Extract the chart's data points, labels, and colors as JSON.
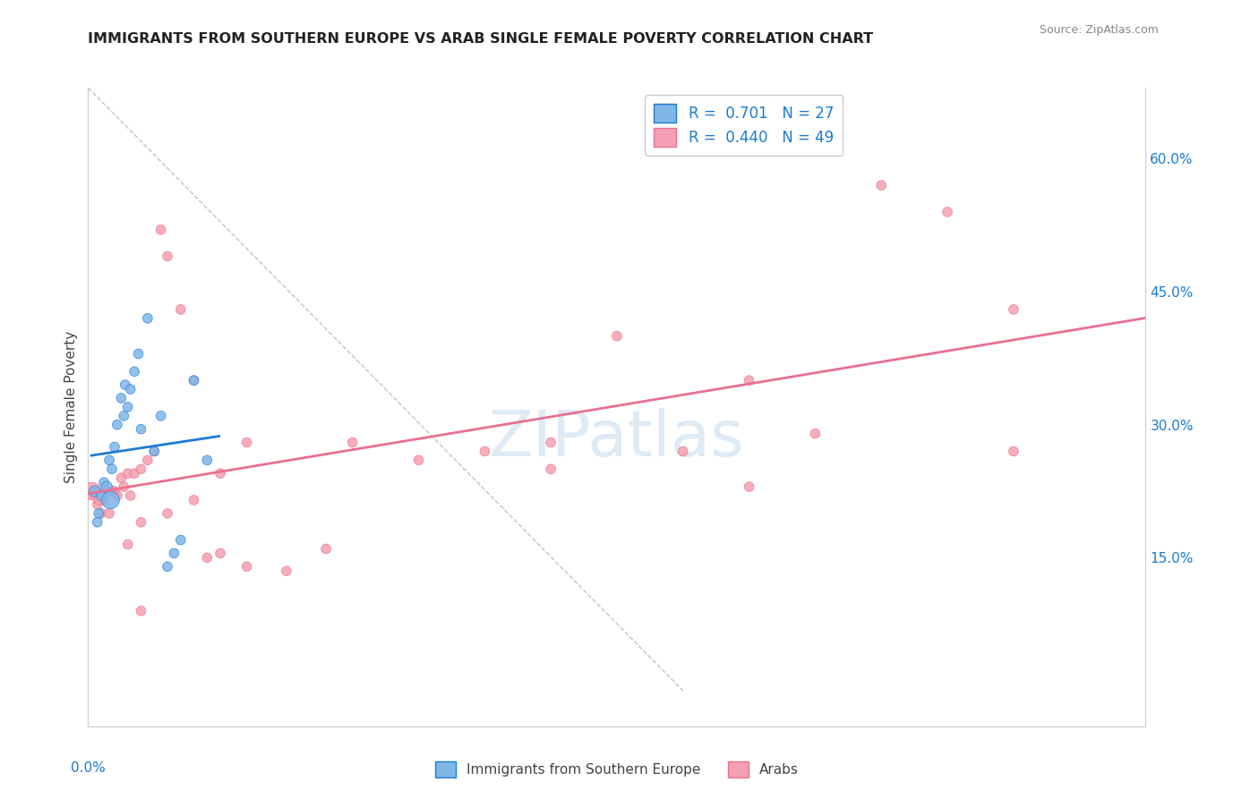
{
  "title": "IMMIGRANTS FROM SOUTHERN EUROPE VS ARAB SINGLE FEMALE POVERTY CORRELATION CHART",
  "source_text": "Source: ZipAtlas.com",
  "ylabel": "Single Female Poverty",
  "watermark": "ZIPatlas",
  "legend_blue_R": "0.701",
  "legend_blue_N": "27",
  "legend_pink_R": "0.440",
  "legend_pink_N": "49",
  "legend_label_blue": "Immigrants from Southern Europe",
  "legend_label_pink": "Arabs",
  "right_yticks": [
    0.0,
    0.15,
    0.3,
    0.45,
    0.6
  ],
  "right_yticklabels": [
    "",
    "15.0%",
    "30.0%",
    "45.0%",
    "60.0%"
  ],
  "xlim": [
    0.0,
    0.8
  ],
  "ylim": [
    -0.04,
    0.68
  ],
  "blue_color": "#7EB6E8",
  "pink_color": "#F5A0B0",
  "blue_line_color": "#1E7BD4",
  "pink_line_color": "#E87090",
  "title_color": "#222222",
  "axis_label_color": "#1A7BD4",
  "grid_color": "#CCCCCC",
  "background_color": "#FFFFFF",
  "blue_scatter_x": [
    0.005,
    0.007,
    0.008,
    0.01,
    0.012,
    0.014,
    0.016,
    0.017,
    0.018,
    0.02,
    0.022,
    0.025,
    0.027,
    0.028,
    0.03,
    0.032,
    0.035,
    0.038,
    0.04,
    0.045,
    0.05,
    0.055,
    0.06,
    0.065,
    0.07,
    0.08,
    0.09
  ],
  "blue_scatter_y": [
    0.225,
    0.19,
    0.2,
    0.22,
    0.235,
    0.23,
    0.26,
    0.215,
    0.25,
    0.275,
    0.3,
    0.33,
    0.31,
    0.345,
    0.32,
    0.34,
    0.36,
    0.38,
    0.295,
    0.42,
    0.27,
    0.31,
    0.14,
    0.155,
    0.17,
    0.35,
    0.26
  ],
  "blue_scatter_sizes": [
    80,
    60,
    60,
    60,
    60,
    80,
    60,
    200,
    60,
    60,
    60,
    60,
    60,
    60,
    60,
    60,
    60,
    60,
    60,
    60,
    60,
    60,
    60,
    60,
    60,
    60,
    60
  ],
  "pink_scatter_x": [
    0.003,
    0.005,
    0.007,
    0.008,
    0.01,
    0.012,
    0.014,
    0.016,
    0.018,
    0.02,
    0.022,
    0.025,
    0.027,
    0.03,
    0.032,
    0.035,
    0.04,
    0.045,
    0.05,
    0.055,
    0.06,
    0.07,
    0.08,
    0.09,
    0.1,
    0.12,
    0.15,
    0.18,
    0.2,
    0.25,
    0.3,
    0.35,
    0.4,
    0.45,
    0.5,
    0.55,
    0.6,
    0.65,
    0.7,
    0.03,
    0.04,
    0.06,
    0.08,
    0.1,
    0.12,
    0.35,
    0.5,
    0.7,
    0.04
  ],
  "pink_scatter_y": [
    0.225,
    0.22,
    0.21,
    0.215,
    0.2,
    0.215,
    0.225,
    0.2,
    0.225,
    0.225,
    0.22,
    0.24,
    0.23,
    0.245,
    0.22,
    0.245,
    0.25,
    0.26,
    0.27,
    0.52,
    0.49,
    0.43,
    0.35,
    0.15,
    0.155,
    0.14,
    0.135,
    0.16,
    0.28,
    0.26,
    0.27,
    0.25,
    0.4,
    0.27,
    0.35,
    0.29,
    0.57,
    0.54,
    0.43,
    0.165,
    0.19,
    0.2,
    0.215,
    0.245,
    0.28,
    0.28,
    0.23,
    0.27,
    0.09
  ],
  "pink_scatter_sizes": [
    200,
    60,
    60,
    60,
    60,
    60,
    60,
    60,
    60,
    60,
    60,
    60,
    60,
    60,
    60,
    60,
    60,
    60,
    60,
    60,
    60,
    60,
    60,
    60,
    60,
    60,
    60,
    60,
    60,
    60,
    60,
    60,
    60,
    60,
    60,
    60,
    60,
    60,
    60,
    60,
    60,
    60,
    60,
    60,
    60,
    60,
    60,
    60,
    60
  ],
  "dashed_line_x": [
    0.0,
    0.45
  ],
  "dashed_line_y": [
    0.68,
    0.0
  ]
}
